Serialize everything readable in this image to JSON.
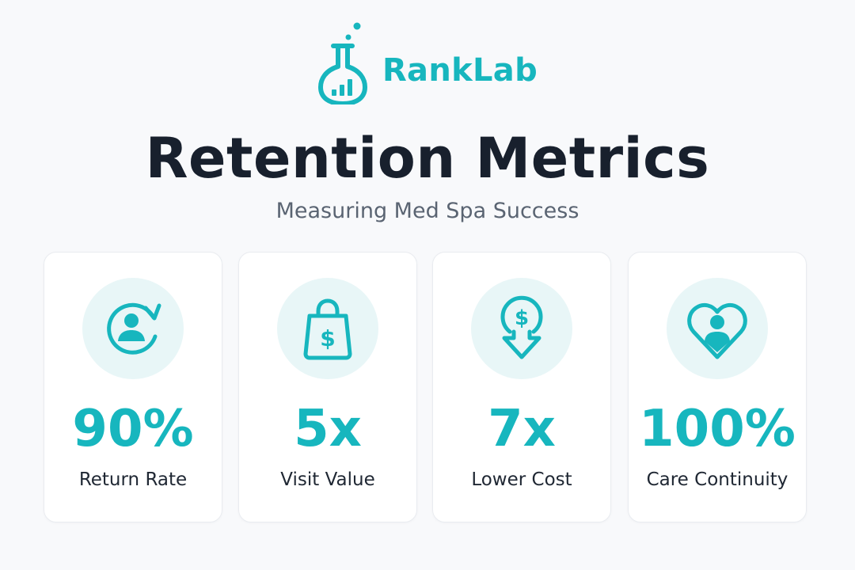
{
  "brand": {
    "name": "RankLab",
    "logo_icon": "flask-bar-chart-icon",
    "accent_color": "#17b6be"
  },
  "header": {
    "title": "Retention Metrics",
    "subtitle": "Measuring Med Spa Success"
  },
  "metrics": [
    {
      "icon": "user-refresh-icon",
      "value": "90%",
      "label": "Return Rate"
    },
    {
      "icon": "shopping-bag-dollar-icon",
      "value": "5x",
      "label": "Visit Value"
    },
    {
      "icon": "dollar-down-arrow-icon",
      "value": "7x",
      "label": "Lower Cost"
    },
    {
      "icon": "heart-user-icon",
      "value": "100%",
      "label": "Care Continuity"
    }
  ]
}
